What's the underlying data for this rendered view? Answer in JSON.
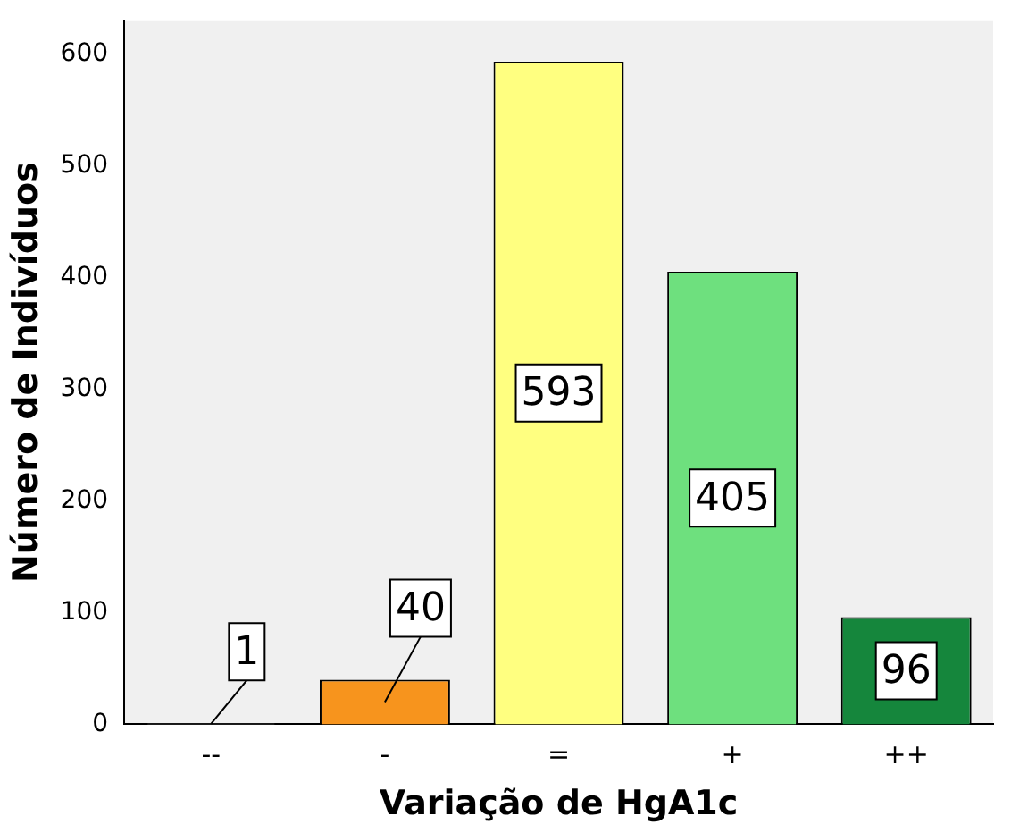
{
  "chart_data": {
    "type": "bar",
    "xlabel": "Variação de HgA1c",
    "ylabel": "Número de Indivíduos",
    "categories": [
      "--",
      "-",
      "=",
      "+",
      "++"
    ],
    "values": [
      1,
      40,
      593,
      405,
      96
    ],
    "colors": [
      "#7a7a7a",
      "#f7941d",
      "#ffff80",
      "#6ee07e",
      "#15863c"
    ],
    "ylim": [
      0,
      630
    ],
    "yticks": [
      0,
      100,
      200,
      300,
      400,
      500,
      600
    ],
    "grid": false,
    "legend": false,
    "data_labels": true
  }
}
